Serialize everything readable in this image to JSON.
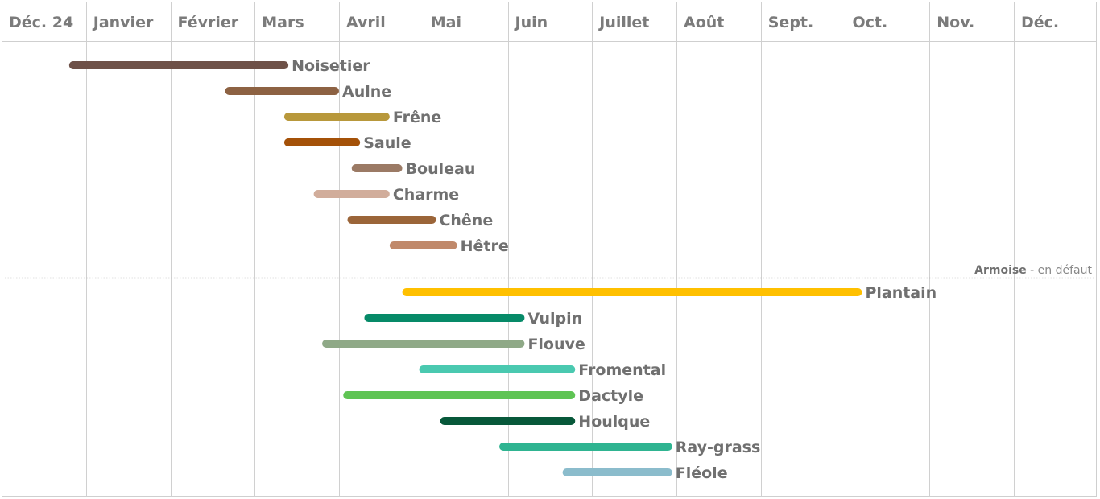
{
  "chart_data": {
    "type": "gantt",
    "months": [
      "Déc. 24",
      "Janvier",
      "Février",
      "Mars",
      "Avril",
      "Mai",
      "Juin",
      "Juillet",
      "Août",
      "Sept.",
      "Oct.",
      "Nov.",
      "Déc."
    ],
    "note": {
      "strong": "Armoise",
      "rest": " - en défaut"
    },
    "groups": [
      {
        "bars": [
          {
            "label": "Noisetier",
            "start": 0.8,
            "end": 3.4,
            "color": "#6e5148"
          },
          {
            "label": "Aulne",
            "start": 2.65,
            "end": 4.0,
            "color": "#8d6243"
          },
          {
            "label": "Frêne",
            "start": 3.35,
            "end": 4.6,
            "color": "#b8983b"
          },
          {
            "label": "Saule",
            "start": 3.35,
            "end": 4.25,
            "color": "#a45108"
          },
          {
            "label": "Bouleau",
            "start": 4.15,
            "end": 4.75,
            "color": "#9b7a65"
          },
          {
            "label": "Charme",
            "start": 3.7,
            "end": 4.6,
            "color": "#d1ad9b"
          },
          {
            "label": "Chêne",
            "start": 4.1,
            "end": 5.15,
            "color": "#9b6539"
          },
          {
            "label": "Hêtre",
            "start": 4.6,
            "end": 5.4,
            "color": "#c0896b"
          }
        ]
      },
      {
        "bars": [
          {
            "label": "Plantain",
            "start": 4.75,
            "end": 10.2,
            "color": "#ffc000"
          },
          {
            "label": "Vulpin",
            "start": 4.3,
            "end": 6.2,
            "color": "#068a68"
          },
          {
            "label": "Flouve",
            "start": 3.8,
            "end": 6.2,
            "color": "#8fa987"
          },
          {
            "label": "Fromental",
            "start": 4.95,
            "end": 6.8,
            "color": "#4ac9b0"
          },
          {
            "label": "Dactyle",
            "start": 4.05,
            "end": 6.8,
            "color": "#5fc454"
          },
          {
            "label": "Houlque",
            "start": 5.2,
            "end": 6.8,
            "color": "#07583a"
          },
          {
            "label": "Ray-grass",
            "start": 5.9,
            "end": 7.95,
            "color": "#2fb491"
          },
          {
            "label": "Fléole",
            "start": 6.65,
            "end": 7.95,
            "color": "#8bbccc"
          }
        ]
      }
    ]
  }
}
